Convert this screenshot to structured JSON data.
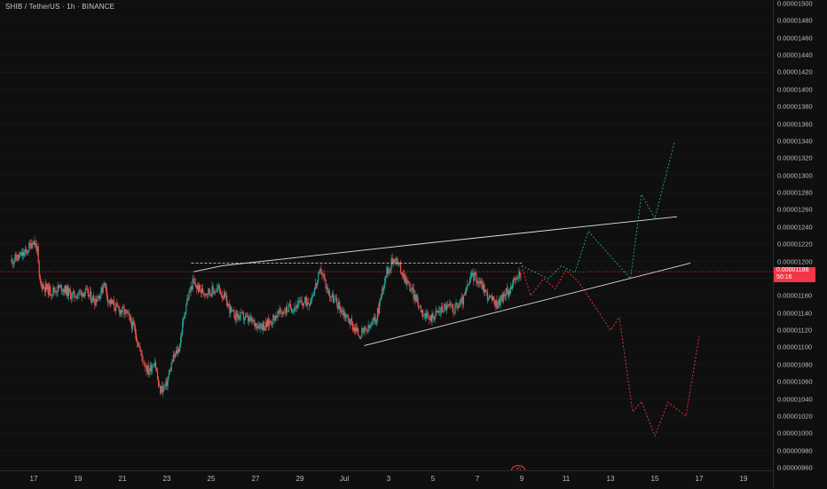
{
  "header": {
    "title": "SHIB / TetherUS · 1h · BINANCE"
  },
  "price_axis": {
    "labels": [
      "0.00001500",
      "0.00001480",
      "0.00001460",
      "0.00001440",
      "0.00001420",
      "0.00001400",
      "0.00001380",
      "0.00001360",
      "0.00001340",
      "0.00001320",
      "0.00001300",
      "0.00001280",
      "0.00001260",
      "0.00001240",
      "0.00001220",
      "0.00001200",
      "0.00001160",
      "0.00001140",
      "0.00001120",
      "0.00001100",
      "0.00001080",
      "0.00001060",
      "0.00001040",
      "0.00001020",
      "0.00001000",
      "0.00000980",
      "0.00000960"
    ]
  },
  "last_price": {
    "value": "0.00001188",
    "countdown": "50:16",
    "color": "#f23645"
  },
  "time_axis": {
    "labels": [
      "17",
      "19",
      "21",
      "23",
      "25",
      "27",
      "29",
      "Jul",
      "3",
      "5",
      "7",
      "9",
      "11",
      "13",
      "15",
      "17",
      "19"
    ]
  },
  "colors": {
    "up": "#26a69a",
    "down": "#ef5350",
    "background": "#0f0f0f",
    "trendline": "#e0e0e0",
    "bull_projection": "#26a69a",
    "bear_projection": "#f23645"
  },
  "icons": {
    "replay": "replay-icon"
  },
  "chart_data": {
    "type": "candlestick",
    "title": "SHIB / TetherUS · 1h · BINANCE",
    "x_ticks": [
      "17",
      "19",
      "21",
      "23",
      "25",
      "27",
      "29",
      "Jul",
      "3",
      "5",
      "7",
      "9",
      "11",
      "13",
      "15",
      "17",
      "19"
    ],
    "y_range": [
      9.6e-06,
      1.5e-05
    ],
    "last_price": 1.188e-05,
    "anchors": [
      [
        16.0,
        1.2e-05
      ],
      [
        16.7,
        1.21e-05
      ],
      [
        17.0,
        1.225e-05
      ],
      [
        17.2,
        1.215e-05
      ],
      [
        17.3,
        1.175e-05
      ],
      [
        17.8,
        1.165e-05
      ],
      [
        18.3,
        1.17e-05
      ],
      [
        18.8,
        1.16e-05
      ],
      [
        19.3,
        1.165e-05
      ],
      [
        19.8,
        1.155e-05
      ],
      [
        20.1,
        1.165e-05
      ],
      [
        20.2,
        1.178e-05
      ],
      [
        20.4,
        1.155e-05
      ],
      [
        20.8,
        1.145e-05
      ],
      [
        21.2,
        1.14e-05
      ],
      [
        21.6,
        1.12e-05
      ],
      [
        21.9,
        1.09e-05
      ],
      [
        22.2,
        1.072e-05
      ],
      [
        22.5,
        1.085e-05
      ],
      [
        22.7,
        1.05e-05
      ],
      [
        23.0,
        1.055e-05
      ],
      [
        23.3,
        1.085e-05
      ],
      [
        23.6,
        1.1e-05
      ],
      [
        23.9,
        1.15e-05
      ],
      [
        24.2,
        1.175e-05
      ],
      [
        24.6,
        1.165e-05
      ],
      [
        25.0,
        1.165e-05
      ],
      [
        25.4,
        1.168e-05
      ],
      [
        25.7,
        1.155e-05
      ],
      [
        26.0,
        1.138e-05
      ],
      [
        26.5,
        1.135e-05
      ],
      [
        27.0,
        1.128e-05
      ],
      [
        27.5,
        1.125e-05
      ],
      [
        28.0,
        1.138e-05
      ],
      [
        28.5,
        1.145e-05
      ],
      [
        29.0,
        1.15e-05
      ],
      [
        29.5,
        1.155e-05
      ],
      [
        29.8,
        1.175e-05
      ],
      [
        30.0,
        1.19e-05
      ],
      [
        30.3,
        1.165e-05
      ],
      [
        30.8,
        1.148e-05
      ],
      [
        31.3,
        1.13e-05
      ],
      [
        31.7,
        1.115e-05
      ],
      [
        32.1,
        1.12e-05
      ],
      [
        32.5,
        1.135e-05
      ],
      [
        32.9,
        1.185e-05
      ],
      [
        33.3,
        1.205e-05
      ],
      [
        33.6,
        1.19e-05
      ],
      [
        34.0,
        1.17e-05
      ],
      [
        34.4,
        1.15e-05
      ],
      [
        34.8,
        1.132e-05
      ],
      [
        35.2,
        1.14e-05
      ],
      [
        35.6,
        1.148e-05
      ],
      [
        36.0,
        1.145e-05
      ],
      [
        36.4,
        1.155e-05
      ],
      [
        36.8,
        1.185e-05
      ],
      [
        37.2,
        1.175e-05
      ],
      [
        37.5,
        1.16e-05
      ],
      [
        37.9,
        1.15e-05
      ],
      [
        38.3,
        1.162e-05
      ],
      [
        38.7,
        1.175e-05
      ],
      [
        39.0,
        1.188e-05
      ]
    ]
  },
  "drawings": {
    "resistance_dashed_level": 1.198e-05,
    "upper_trendline": [
      [
        24.2,
        1.188e-05
      ],
      [
        25.5,
        1.195e-05
      ],
      [
        35.0,
        1.222e-05
      ],
      [
        46.0,
        1.252e-05
      ]
    ],
    "lower_trendline": [
      [
        31.9,
        1.102e-05
      ],
      [
        46.6,
        1.198e-05
      ]
    ],
    "bull_projection": [
      [
        39.0,
        1.195e-05
      ],
      [
        40.2,
        1.18e-05
      ],
      [
        40.8,
        1.195e-05
      ],
      [
        41.4,
        1.187e-05
      ],
      [
        42.0,
        1.235e-05
      ],
      [
        43.9,
        1.18e-05
      ],
      [
        44.4,
        1.278e-05
      ],
      [
        45.0,
        1.25e-05
      ],
      [
        45.9,
        1.34e-05
      ]
    ],
    "bear_projection": [
      [
        39.0,
        1.195e-05
      ],
      [
        39.4,
        1.16e-05
      ],
      [
        40.0,
        1.18e-05
      ],
      [
        40.5,
        1.168e-05
      ],
      [
        41.0,
        1.19e-05
      ],
      [
        41.6,
        1.175e-05
      ],
      [
        43.0,
        1.12e-05
      ],
      [
        43.4,
        1.135e-05
      ],
      [
        44.0,
        1.025e-05
      ],
      [
        44.4,
        1.037e-05
      ],
      [
        45.0,
        9.97e-06
      ],
      [
        45.6,
        1.036e-05
      ],
      [
        46.4,
        1.02e-05
      ],
      [
        47.0,
        1.113e-05
      ]
    ]
  }
}
